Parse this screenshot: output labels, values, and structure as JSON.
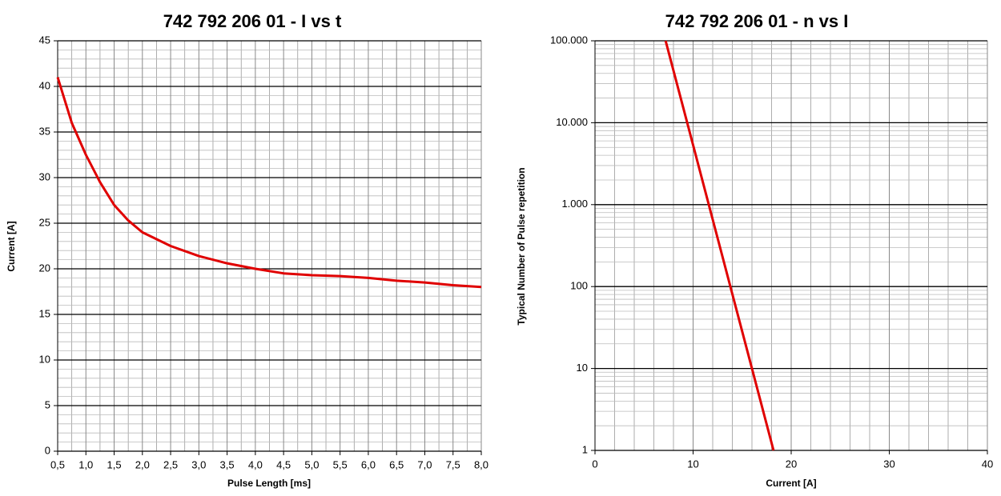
{
  "chart_data": [
    {
      "type": "line",
      "title": "742 792 206 01  -  I vs t",
      "xlabel": "Pulse Length [ms]",
      "ylabel": "Current [A]",
      "x": [
        0.5,
        0.75,
        1.0,
        1.25,
        1.5,
        1.75,
        2.0,
        2.5,
        3.0,
        3.5,
        4.0,
        4.5,
        5.0,
        5.5,
        6.0,
        6.5,
        7.0,
        7.5,
        8.0
      ],
      "values": [
        41,
        36,
        32.5,
        29.5,
        27,
        25.3,
        24,
        22.5,
        21.4,
        20.6,
        20,
        19.5,
        19.3,
        19.2,
        19,
        18.7,
        18.5,
        18.2,
        18
      ],
      "color": "#e00000",
      "log_y": false,
      "xlim": [
        0.5,
        8.0
      ],
      "xticks": [
        {
          "value": 0.5,
          "label": "0,5"
        },
        {
          "value": 1.0,
          "label": "1,0"
        },
        {
          "value": 1.5,
          "label": "1,5"
        },
        {
          "value": 2.0,
          "label": "2,0"
        },
        {
          "value": 2.5,
          "label": "2,5"
        },
        {
          "value": 3.0,
          "label": "3,0"
        },
        {
          "value": 3.5,
          "label": "3,5"
        },
        {
          "value": 4.0,
          "label": "4,0"
        },
        {
          "value": 4.5,
          "label": "4,5"
        },
        {
          "value": 5.0,
          "label": "5,0"
        },
        {
          "value": 5.5,
          "label": "5,5"
        },
        {
          "value": 6.0,
          "label": "6,0"
        },
        {
          "value": 6.5,
          "label": "6,5"
        },
        {
          "value": 7.0,
          "label": "7,0"
        },
        {
          "value": 7.5,
          "label": "7,5"
        },
        {
          "value": 8.0,
          "label": "8,0"
        }
      ],
      "ylim": [
        0,
        45
      ],
      "yticks": [
        0,
        5,
        10,
        15,
        20,
        25,
        30,
        35,
        40,
        45
      ],
      "grid": true
    },
    {
      "type": "line",
      "title": "742 792 206 01  -  n vs I",
      "xlabel": "Current [A]",
      "ylabel": "Typical Number of Pulse repetition",
      "x": [
        7.2,
        18.2
      ],
      "values": [
        100000,
        1
      ],
      "color": "#e00000",
      "log_y": true,
      "xlim": [
        0,
        40
      ],
      "xticks": [
        0,
        10,
        20,
        30,
        40
      ],
      "ylim": [
        1,
        100000
      ],
      "yticks": [
        1,
        10,
        100,
        {
          "value": 1000,
          "label": "1.000"
        },
        {
          "value": 10000,
          "label": "10.000"
        },
        {
          "value": 100000,
          "label": "100.000"
        }
      ],
      "grid": true
    }
  ]
}
